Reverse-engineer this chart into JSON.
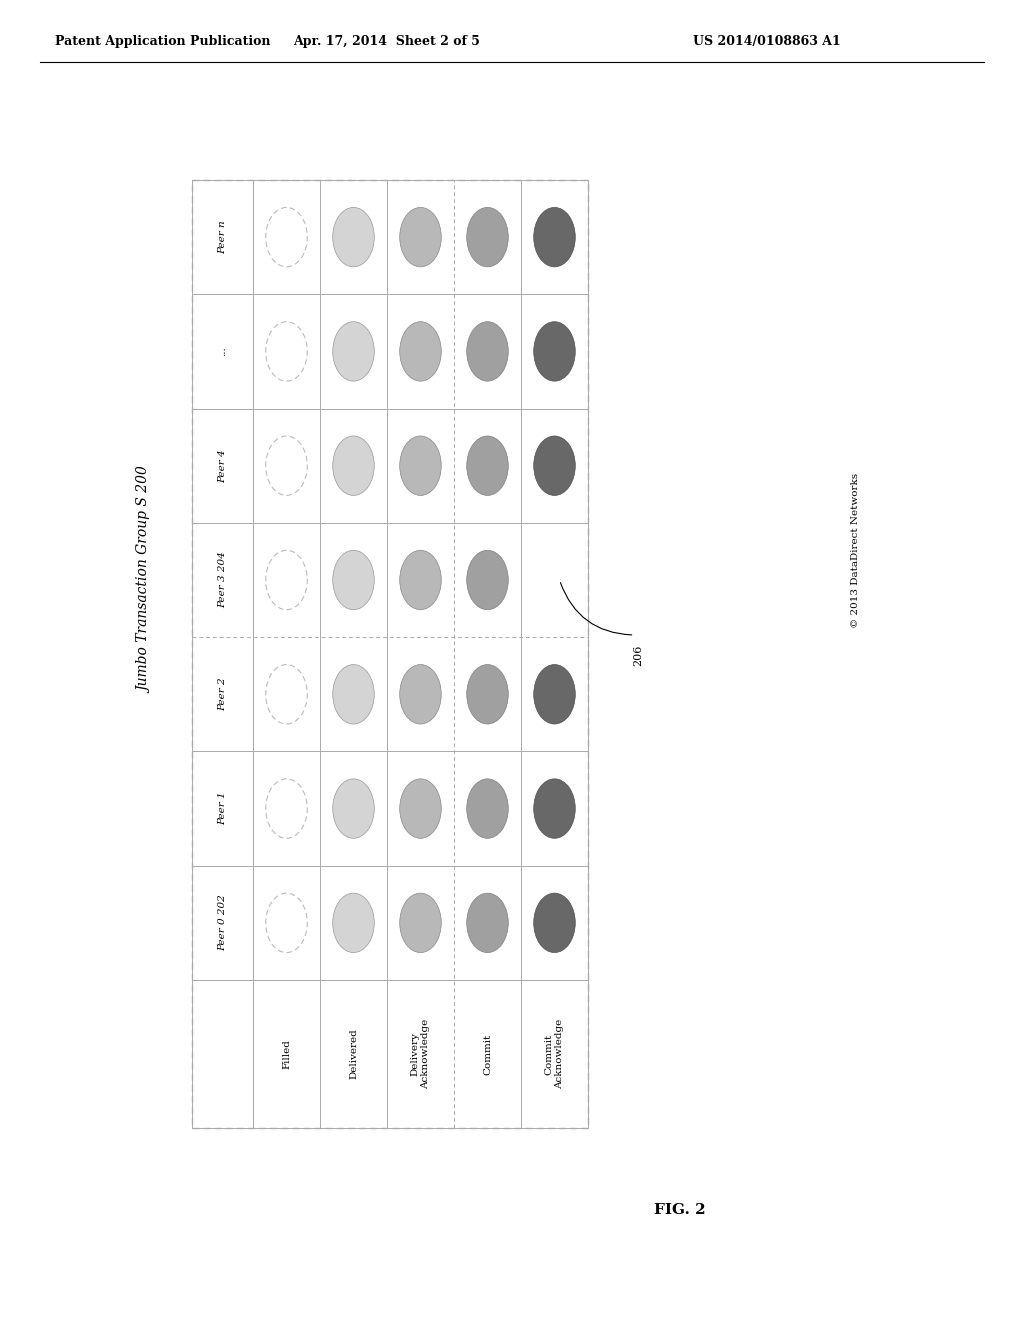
{
  "header_left": "Patent Application Publication",
  "header_mid": "Apr. 17, 2014  Sheet 2 of 5",
  "header_right": "US 2014/0108863 A1",
  "group_label": "Jumbo Transaction Group S 200",
  "copyright": "© 2013 DataDirect Networks",
  "fig_label": "FIG. 2",
  "ref_206": "206",
  "peers": [
    "Peer 0 202",
    "Peer 1",
    "Peer 2",
    "Peer 3 204",
    "Peer 4",
    "...",
    "Peer n"
  ],
  "states": [
    "Filled",
    "Delivered",
    "Delivery\nAcknowledge",
    "Commit",
    "Commit\nAcknowledge"
  ],
  "circle_fills": [
    "#ffffff",
    "#d4d4d4",
    "#b8b8b8",
    "#a0a0a0",
    "#686868"
  ],
  "circle_edges": [
    "#bbbbbb",
    "#999999",
    "#888888",
    "#808080",
    "#505050"
  ],
  "circle_filled_dashed": [
    true,
    false,
    false,
    false,
    false
  ],
  "missing": [
    [
      3,
      4
    ]
  ],
  "row_linestyles": [
    "solid",
    "solid",
    "solid",
    "dashed",
    "solid",
    "solid",
    "solid"
  ],
  "col_linestyles": [
    "solid",
    "solid",
    "solid",
    "dashed",
    "solid"
  ],
  "background_color": "#ffffff"
}
